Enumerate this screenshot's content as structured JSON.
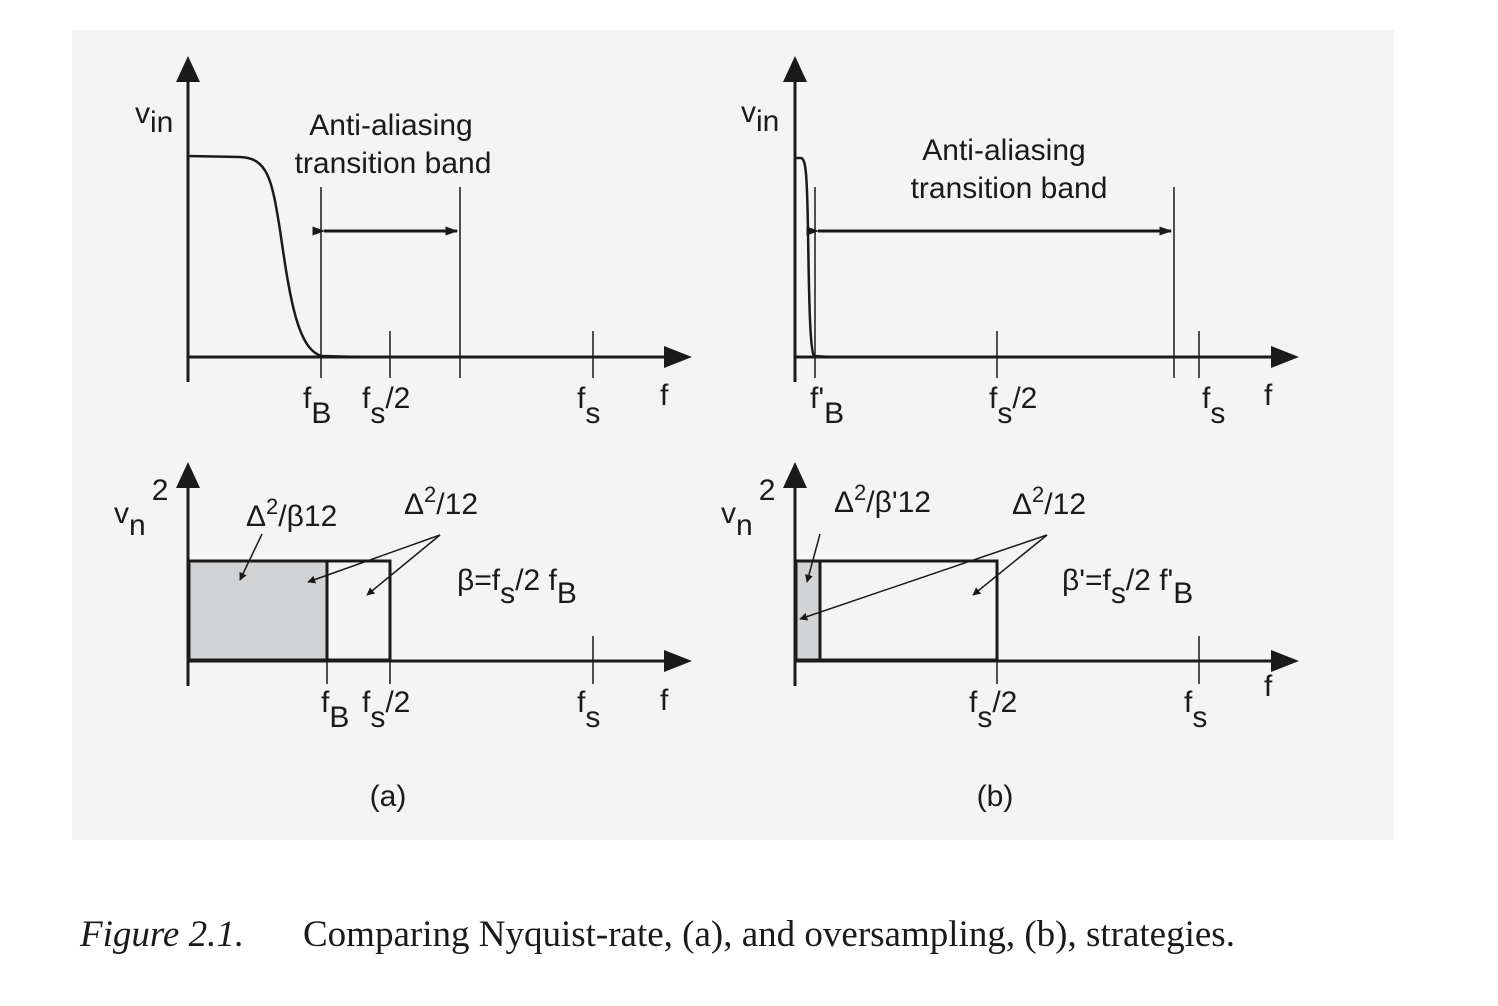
{
  "panels": {
    "a": {
      "label": "(a)",
      "top": {
        "y_axis_label": {
          "base": "v",
          "sub": "in"
        },
        "x_axis_label": "f",
        "band_label_line1": "Anti-aliasing",
        "band_label_line2": "transition band",
        "ticks": {
          "fB": {
            "base": "f",
            "sub": "B"
          },
          "fs2": {
            "base": "f",
            "sub": "s",
            "tail": "/2"
          },
          "fs": {
            "base": "f",
            "sub": "s"
          }
        }
      },
      "bottom": {
        "y_axis_label": {
          "base": "v",
          "sub": "n",
          "sup": "2"
        },
        "x_axis_label": "f",
        "shaded_label": {
          "delta": "Δ",
          "sup": "2",
          "tail": "/β12"
        },
        "full_label": {
          "delta": "Δ",
          "sup": "2",
          "tail": "/12"
        },
        "beta_def": {
          "pre": "β=f",
          "sub1": "s",
          "mid": "/2 f",
          "sub2": "B"
        },
        "ticks": {
          "fB": {
            "base": "f",
            "sub": "B"
          },
          "fs2": {
            "base": "f",
            "sub": "s",
            "tail": "/2"
          },
          "fs": {
            "base": "f",
            "sub": "s"
          }
        }
      }
    },
    "b": {
      "label": "(b)",
      "top": {
        "y_axis_label": {
          "base": "v",
          "sub": "in"
        },
        "x_axis_label": "f",
        "band_label_line1": "Anti-aliasing",
        "band_label_line2": "transition band",
        "ticks": {
          "fB": {
            "base": "f'",
            "sub": "B"
          },
          "fs2": {
            "base": "f",
            "sub": "s",
            "tail": "/2"
          },
          "fs": {
            "base": "f",
            "sub": "s"
          }
        }
      },
      "bottom": {
        "y_axis_label": {
          "base": "v",
          "sub": "n",
          "sup": "2"
        },
        "x_axis_label": "f",
        "shaded_label": {
          "delta": "Δ",
          "sup": "2",
          "tail": "/β'12"
        },
        "full_label": {
          "delta": "Δ",
          "sup": "2",
          "tail": "/12"
        },
        "beta_def": {
          "pre": "β'=f",
          "sub1": "s",
          "mid": "/2 f'",
          "sub2": "B"
        },
        "ticks": {
          "fs2": {
            "base": "f",
            "sub": "s",
            "tail": "/2"
          },
          "fs": {
            "base": "f",
            "sub": "s"
          }
        }
      }
    }
  },
  "caption": {
    "prefix": "Figure 2.1.",
    "text": "Comparing Nyquist-rate, (a), and oversampling, (b), strategies."
  },
  "colors": {
    "ink": "#1a1a1a",
    "shade": "#d2d3d5",
    "panel_bg": "#f4f4f4"
  }
}
